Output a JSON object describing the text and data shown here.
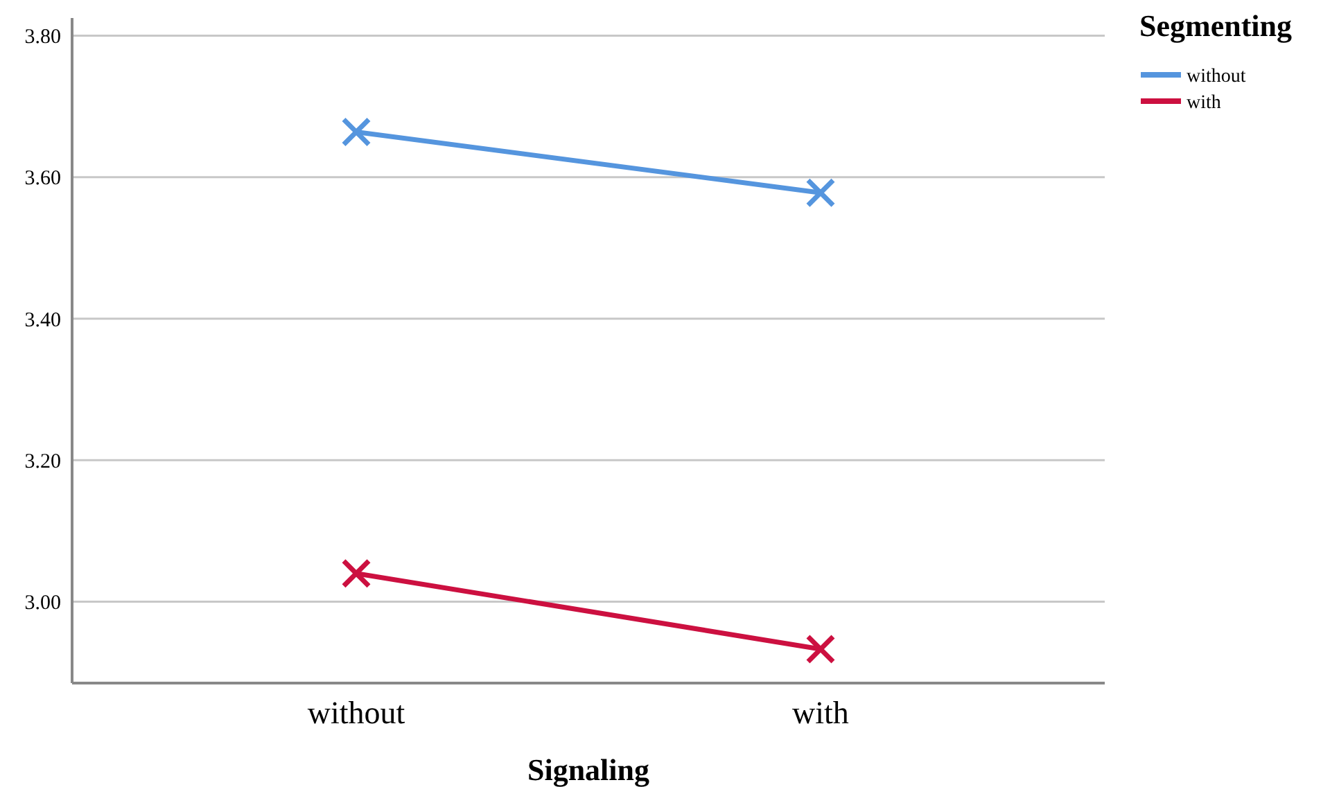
{
  "chart_data": {
    "type": "line",
    "xlabel": "Signaling",
    "legend_title": "Segmenting",
    "categories": [
      "without",
      "with"
    ],
    "series": [
      {
        "name": "without",
        "color": "#5595de",
        "values": [
          3.664,
          3.578
        ]
      },
      {
        "name": "with",
        "color": "#cc1040",
        "values": [
          3.04,
          2.933
        ]
      }
    ],
    "ylim": [
      2.885,
      3.825
    ],
    "yticks": [
      {
        "value": 3.0,
        "label": "3.00"
      },
      {
        "value": 3.2,
        "label": "3.20"
      },
      {
        "value": 3.4,
        "label": "3.40"
      },
      {
        "value": 3.6,
        "label": "3.60"
      },
      {
        "value": 3.8,
        "label": "3.80"
      }
    ],
    "grid": "y",
    "legend": "top right",
    "marker": "cross",
    "line_style": "solid"
  }
}
